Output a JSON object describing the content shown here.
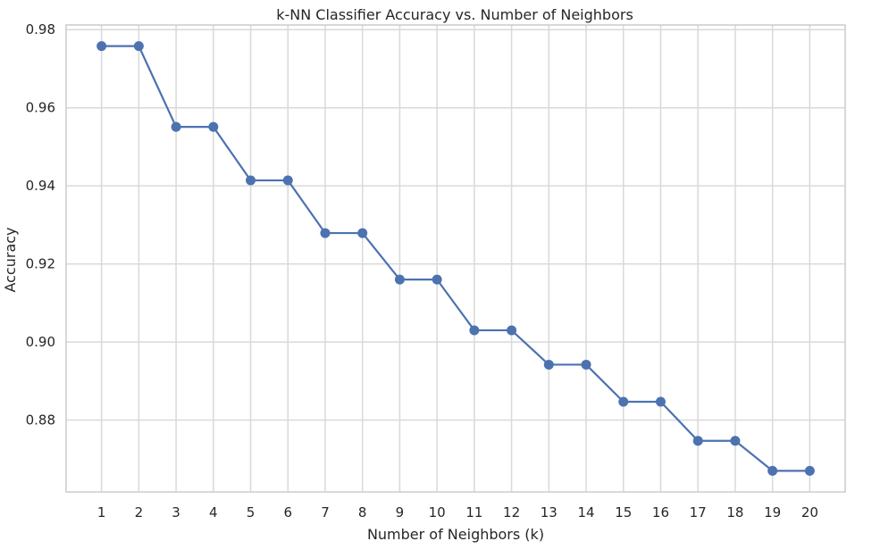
{
  "chart_data": {
    "type": "line",
    "title": "k-NN Classifier Accuracy vs. Number of Neighbors",
    "xlabel": "Number of Neighbors (k)",
    "ylabel": "Accuracy",
    "x": [
      1,
      2,
      3,
      4,
      5,
      6,
      7,
      8,
      9,
      10,
      11,
      12,
      13,
      14,
      15,
      16,
      17,
      18,
      19,
      20
    ],
    "x_tick_labels": [
      "1",
      "2",
      "3",
      "4",
      "5",
      "6",
      "7",
      "8",
      "9",
      "10",
      "11",
      "12",
      "13",
      "14",
      "15",
      "16",
      "17",
      "18",
      "19",
      "20"
    ],
    "series": [
      {
        "values": [
          0.9758,
          0.9758,
          0.9551,
          0.9551,
          0.9414,
          0.9414,
          0.9279,
          0.9279,
          0.916,
          0.916,
          0.903,
          0.903,
          0.8942,
          0.8942,
          0.8847,
          0.8847,
          0.8747,
          0.8747,
          0.867,
          0.867
        ],
        "color": "#4c72b0",
        "marker": "circle"
      }
    ],
    "y_ticks": [
      0.88,
      0.9,
      0.92,
      0.94,
      0.96,
      0.98
    ],
    "y_tick_labels": [
      "0.88",
      "0.90",
      "0.92",
      "0.94",
      "0.96",
      "0.98"
    ],
    "xlim": [
      0.05,
      20.95
    ],
    "ylim": [
      0.8616,
      0.9812
    ],
    "grid": true,
    "grid_color": "#d9d9d9",
    "axes_color": "#cccccc",
    "background": "#ffffff",
    "legend": "none"
  }
}
